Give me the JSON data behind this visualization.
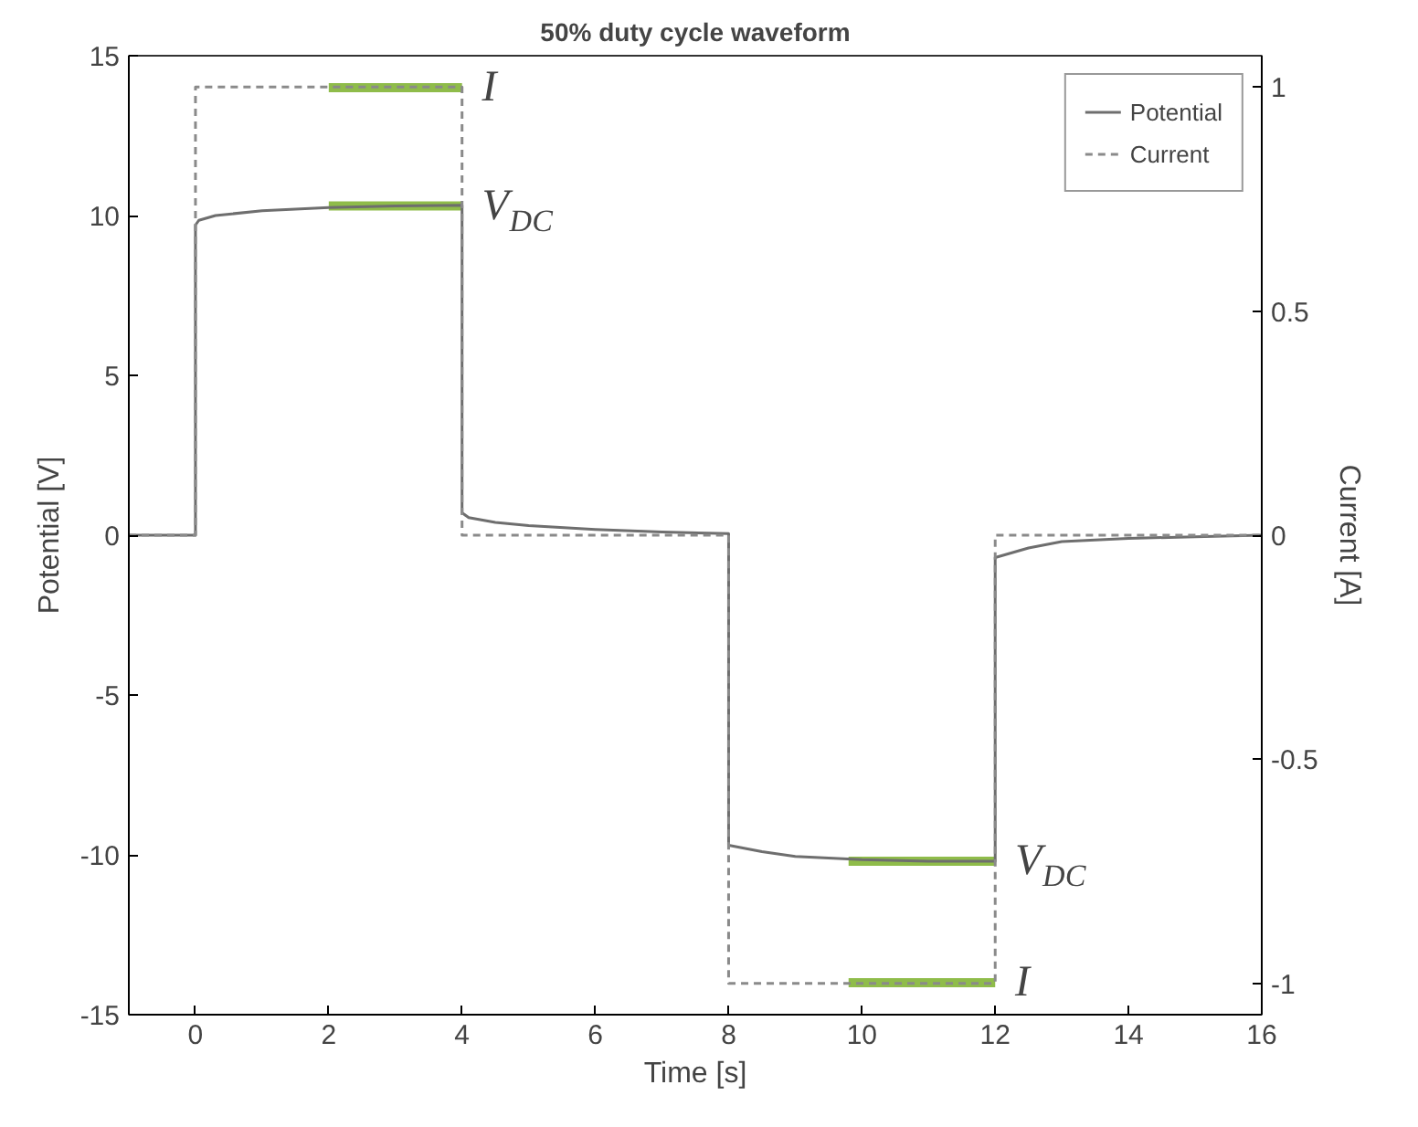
{
  "chart_data": {
    "type": "line",
    "title": "50% duty cycle waveform",
    "xlabel": "Time [s]",
    "ylabel": "Potential [V]",
    "y2label": "Current [A]",
    "xlim": [
      -1,
      16
    ],
    "xticks": [
      0,
      2,
      4,
      6,
      8,
      10,
      12,
      14,
      16
    ],
    "ylim": [
      -15,
      15
    ],
    "yticks": [
      -15,
      -10,
      -5,
      0,
      5,
      10,
      15
    ],
    "y2lim": [
      -1.07,
      1.07
    ],
    "y2ticks": [
      -1,
      -0.5,
      0,
      0.5,
      1
    ],
    "grid": false,
    "legend": "top right",
    "series": [
      {
        "name": "Potential",
        "color": "#6e6e6e",
        "line_style": "solid",
        "x": [
          -1,
          0,
          0,
          0.05,
          0.3,
          1,
          2,
          3,
          4,
          4,
          4.1,
          4.5,
          5,
          6,
          7,
          8,
          8,
          8.5,
          9,
          10,
          11,
          12,
          12,
          12.5,
          13,
          14,
          15,
          16
        ],
        "values": [
          0,
          0,
          9.7,
          9.85,
          10.0,
          10.15,
          10.25,
          10.3,
          10.32,
          0.7,
          0.55,
          0.4,
          0.3,
          0.18,
          0.1,
          0.05,
          -9.7,
          -9.9,
          -10.05,
          -10.15,
          -10.2,
          -10.2,
          -0.7,
          -0.4,
          -0.2,
          -0.1,
          -0.05,
          0
        ]
      },
      {
        "name": "Current",
        "color": "#8a8a8a",
        "line_style": "dashed",
        "axis": "y2",
        "x": [
          -1,
          0,
          0,
          4,
          4,
          8,
          8,
          12,
          12,
          16
        ],
        "values": [
          0,
          0,
          1,
          1,
          0,
          0,
          -1,
          -1,
          0,
          0
        ]
      },
      {
        "color": "#8fbc4a",
        "line_style": "solid",
        "x": [
          2,
          4
        ],
        "values": [
          14.0,
          14.0
        ]
      },
      {
        "color": "#8fbc4a",
        "line_style": "solid",
        "x": [
          2,
          4
        ],
        "values": [
          10.3,
          10.3
        ]
      },
      {
        "color": "#8fbc4a",
        "line_style": "solid",
        "x": [
          9.8,
          12
        ],
        "values": [
          -10.2,
          -10.2
        ]
      },
      {
        "color": "#8fbc4a",
        "line_style": "solid",
        "x": [
          9.8,
          12
        ],
        "values": [
          -14.0,
          -14.0
        ]
      }
    ],
    "annotations": [
      "I",
      "V$_{DC}$",
      "V$_{DC}$",
      "I"
    ]
  }
}
